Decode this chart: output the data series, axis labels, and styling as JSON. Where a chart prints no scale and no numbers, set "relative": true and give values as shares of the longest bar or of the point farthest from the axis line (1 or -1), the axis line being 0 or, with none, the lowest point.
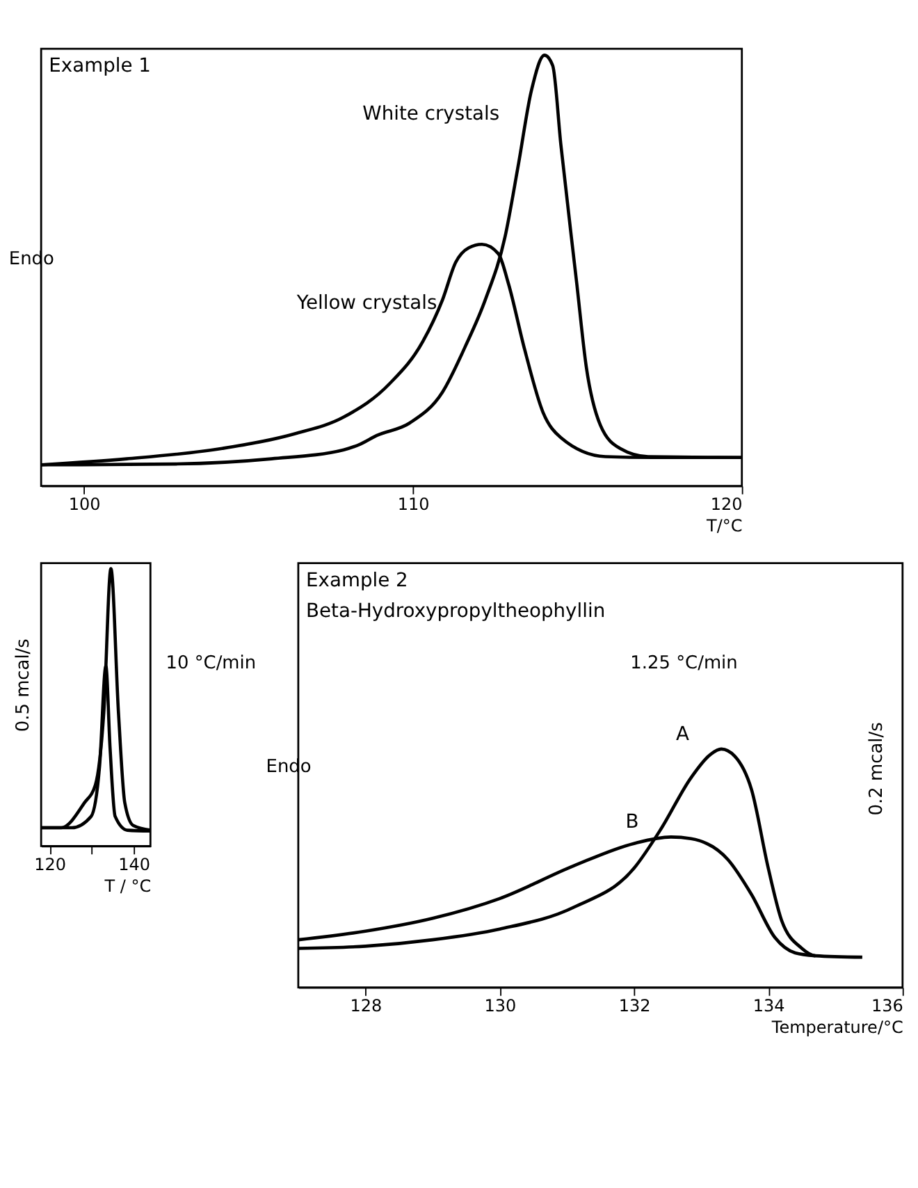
{
  "chart_data": [
    {
      "type": "line",
      "title": "Example 1",
      "ylabel": "Endo",
      "xlabel": "T/°C",
      "relative": true,
      "xlim": [
        98.7,
        120
      ],
      "xticks": [
        100,
        110,
        120
      ],
      "grid": false,
      "legend": false,
      "marker": "none",
      "line_style": "solid",
      "series": [
        {
          "name": "White crystals",
          "color": "#000000",
          "x": [
            98.7,
            102.8,
            105.7,
            107.9,
            108.4,
            108.9,
            109.9,
            110.9,
            111.6,
            112.2,
            112.8,
            113.2,
            113.6,
            114.0,
            114.25,
            114.5,
            114.98,
            115.27,
            115.7,
            116.3,
            117.15,
            120
          ],
          "values": [
            0.049,
            0.051,
            0.063,
            0.084,
            0.097,
            0.117,
            0.146,
            0.218,
            0.325,
            0.432,
            0.578,
            0.743,
            0.917,
            1.0,
            0.976,
            0.791,
            0.471,
            0.277,
            0.141,
            0.087,
            0.068,
            0.066
          ]
        },
        {
          "name": "Yellow crystals",
          "color": "#000000",
          "x": [
            98.7,
            101.3,
            104.2,
            106.4,
            107.9,
            109.3,
            110.3,
            110.9,
            111.3,
            111.7,
            112.1,
            112.6,
            112.9,
            113.4,
            113.96,
            114.5,
            115.85,
            117.3,
            120
          ],
          "values": [
            0.049,
            0.063,
            0.087,
            0.121,
            0.16,
            0.238,
            0.335,
            0.432,
            0.519,
            0.553,
            0.561,
            0.539,
            0.471,
            0.316,
            0.17,
            0.112,
            0.068,
            0.066,
            0.066
          ]
        }
      ]
    },
    {
      "type": "line",
      "title": "Example 2",
      "subtitle": "Beta-Hydroxypropyltheophyllin",
      "xlabel": "Temperature/°C",
      "ylabel": "Endo",
      "relative": true,
      "xlim": [
        127,
        136
      ],
      "xticks": [
        128,
        130,
        132,
        134,
        136
      ],
      "grid": false,
      "legend": false,
      "marker": "none",
      "line_style": "solid",
      "annotations": [
        "1.25 °C/min",
        "0.2 mcal/s"
      ],
      "series": [
        {
          "name": "A",
          "color": "#000000",
          "x": [
            127.0,
            128,
            129,
            130,
            131.1,
            132,
            132.4,
            132.85,
            133.15,
            133.3,
            133.5,
            133.75,
            134,
            134.2,
            134.5,
            134.7,
            135.4
          ],
          "values": [
            0.164,
            0.173,
            0.2,
            0.245,
            0.336,
            0.5,
            0.664,
            0.88,
            0.98,
            1.0,
            0.97,
            0.83,
            0.5,
            0.28,
            0.164,
            0.133,
            0.127
          ]
        },
        {
          "name": "B",
          "color": "#000000",
          "x": [
            127.0,
            128,
            129,
            130,
            131.1,
            132,
            132.55,
            132.85,
            133.4,
            133.75,
            134.1,
            134.4,
            134.7
          ],
          "values": [
            0.2,
            0.236,
            0.29,
            0.373,
            0.51,
            0.604,
            0.631,
            0.624,
            0.536,
            0.39,
            0.209,
            0.145,
            0.133
          ]
        }
      ]
    },
    {
      "type": "line",
      "xlabel": "T / °C",
      "relative": true,
      "xlim": [
        118,
        144
      ],
      "xticks": [
        120,
        {
          "value": 130,
          "label": null
        },
        140
      ],
      "grid": false,
      "legend": false,
      "marker": "none",
      "line_style": "solid",
      "annotations": [
        "10 °C/min",
        "0.5 mcal/s"
      ],
      "series": [
        {
          "color": "#000000",
          "x": [
            118,
            122.8,
            128.3,
            130.9,
            132.9,
            134.6,
            136.4,
            137.9,
            139.9,
            144
          ],
          "values": [
            0.066,
            0.066,
            0.156,
            0.22,
            0.48,
            1.0,
            0.48,
            0.156,
            0.074,
            0.057
          ]
        },
        {
          "color": "#000000",
          "x": [
            118,
            125.3,
            129.9,
            131.9,
            133.4,
            134.4,
            135.6,
            138.5,
            144
          ],
          "values": [
            0.066,
            0.066,
            0.107,
            0.287,
            0.648,
            0.352,
            0.107,
            0.057,
            0.054
          ]
        }
      ]
    }
  ]
}
